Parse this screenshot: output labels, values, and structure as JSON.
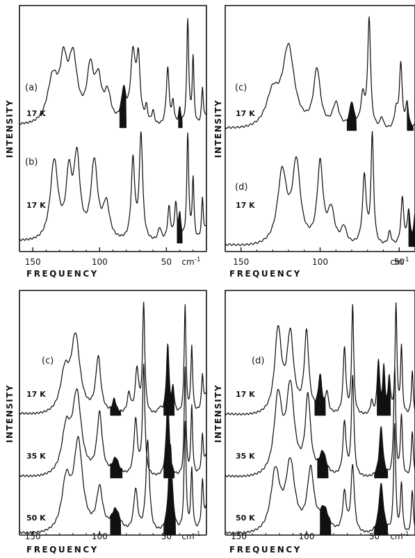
{
  "chart_data": [
    {
      "type": "line",
      "panel": "top-left",
      "ylabel": "INTENSITY",
      "xlabel": "FREQUENCY",
      "x_unit": "cm-1",
      "xlim": [
        160,
        20
      ],
      "xticks": [
        "150",
        "100",
        "50"
      ],
      "series": [
        {
          "label": "(a)",
          "temp": "17 K",
          "peaks": [
            [
              160,
              0.02,
              10
            ],
            [
              135,
              0.42,
              5
            ],
            [
              127,
              0.46,
              3
            ],
            [
              120,
              0.58,
              4
            ],
            [
              107,
              0.47,
              3
            ],
            [
              101,
              0.36,
              3
            ],
            [
              94,
              0.26,
              3
            ],
            [
              82,
              0.28,
              2
            ],
            [
              75,
              0.62,
              2.2
            ],
            [
              71,
              0.55,
              1.6
            ],
            [
              65,
              0.14,
              1.2
            ],
            [
              60,
              0.12,
              1.2
            ],
            [
              49,
              0.52,
              1.3
            ],
            [
              45,
              0.2,
              1
            ],
            [
              40,
              0.14,
              1
            ],
            [
              34,
              0.95,
              0.9
            ],
            [
              30,
              0.6,
              0.8
            ],
            [
              23,
              0.32,
              0.8
            ],
            [
              18,
              0.15,
              3
            ]
          ],
          "shaded": [
            [
              85,
              80
            ],
            [
              41,
              38
            ]
          ]
        },
        {
          "label": "(b)",
          "temp": "17 K",
          "peaks": [
            [
              160,
              0.02,
              10
            ],
            [
              134,
              0.72,
              3.5
            ],
            [
              123,
              0.55,
              2.5
            ],
            [
              117,
              0.72,
              2.8
            ],
            [
              104,
              0.7,
              3
            ],
            [
              95,
              0.32,
              3
            ],
            [
              75,
              0.72,
              1.6
            ],
            [
              69,
              0.95,
              1.5
            ],
            [
              55,
              0.12,
              1.5
            ],
            [
              48,
              0.3,
              1.3
            ],
            [
              43,
              0.32,
              1.2
            ],
            [
              40,
              0.2,
              1
            ],
            [
              34,
              0.95,
              0.9
            ],
            [
              30,
              0.55,
              0.8
            ],
            [
              23,
              0.35,
              0.8
            ],
            [
              18,
              0.2,
              3
            ]
          ],
          "shaded": [
            [
              42,
              38
            ]
          ]
        }
      ]
    },
    {
      "type": "line",
      "panel": "top-right",
      "ylabel": "INTENSITY",
      "xlabel": "FREQUENCY",
      "x_unit": "cm-1",
      "xlim": [
        160,
        40
      ],
      "xticks": [
        "150",
        "100",
        "50"
      ],
      "series": [
        {
          "label": "(c)",
          "temp": "17 K",
          "peaks": [
            [
              160,
              0.02,
              10
            ],
            [
              130,
              0.3,
              5
            ],
            [
              120,
              0.72,
              4.5
            ],
            [
              102,
              0.52,
              2.6
            ],
            [
              90,
              0.22,
              2.5
            ],
            [
              80,
              0.22,
              1.6
            ],
            [
              73,
              0.28,
              1.6
            ],
            [
              69,
              0.98,
              1.1
            ],
            [
              61,
              0.1,
              1.2
            ],
            [
              52,
              0.16,
              1.2
            ],
            [
              49,
              0.58,
              1.1
            ],
            [
              45,
              0.22,
              1
            ],
            [
              37,
              0.18,
              1
            ],
            [
              34,
              0.98,
              0.8
            ],
            [
              31,
              0.55,
              0.8
            ],
            [
              23,
              0.28,
              0.8
            ]
          ],
          "shaded": [
            [
              83,
              77
            ],
            [
              45,
              41
            ]
          ]
        },
        {
          "label": "(d)",
          "temp": "17 K",
          "peaks": [
            [
              160,
              0.02,
              10
            ],
            [
              124,
              0.65,
              3.5
            ],
            [
              115,
              0.72,
              3
            ],
            [
              100,
              0.72,
              2.2
            ],
            [
              93,
              0.3,
              2.5
            ],
            [
              85,
              0.15,
              2
            ],
            [
              72,
              0.62,
              1.4
            ],
            [
              67,
              0.98,
              1
            ],
            [
              56,
              0.12,
              1.2
            ],
            [
              48,
              0.42,
              1.1
            ],
            [
              44,
              0.3,
              1
            ],
            [
              40,
              0.25,
              1
            ],
            [
              34,
              0.98,
              0.8
            ],
            [
              31,
              0.52,
              0.8
            ],
            [
              23,
              0.26,
              0.8
            ]
          ],
          "shaded": [
            [
              44,
              40
            ]
          ]
        }
      ]
    },
    {
      "type": "line",
      "panel": "bottom-left",
      "ylabel": "INTENSITY",
      "xlabel": "FREQUENCY",
      "x_unit": "cm-1",
      "xlim": [
        160,
        20
      ],
      "xticks": [
        "150",
        "100",
        "50"
      ],
      "label": "(c)",
      "series": [
        {
          "temp": "17 K",
          "peaks": [
            [
              160,
              0.02,
              10
            ],
            [
              126,
              0.35,
              4
            ],
            [
              118,
              0.68,
              4
            ],
            [
              101,
              0.5,
              2.3
            ],
            [
              89,
              0.12,
              1.6
            ],
            [
              78,
              0.18,
              1.5
            ],
            [
              72,
              0.4,
              1.5
            ],
            [
              67,
              0.98,
              1.0
            ],
            [
              55,
              0.05,
              1.5
            ],
            [
              49,
              0.62,
              1.2
            ],
            [
              45,
              0.22,
              1
            ],
            [
              36,
              0.98,
              0.8
            ],
            [
              31,
              0.6,
              0.8
            ],
            [
              23,
              0.3,
              0.8
            ],
            [
              18,
              0.3,
              3
            ]
          ],
          "shaded": [
            [
              92,
              84
            ],
            [
              52,
              44
            ]
          ]
        },
        {
          "temp": "35 K",
          "peaks": [
            [
              160,
              0.02,
              10
            ],
            [
              125,
              0.4,
              4
            ],
            [
              117,
              0.72,
              4
            ],
            [
              100,
              0.55,
              2.4
            ],
            [
              88,
              0.15,
              3
            ],
            [
              73,
              0.5,
              1.6
            ],
            [
              67,
              0.98,
              1.1
            ],
            [
              49,
              0.68,
              1.4
            ],
            [
              36,
              0.98,
              0.8
            ],
            [
              31,
              0.62,
              0.8
            ],
            [
              23,
              0.32,
              0.8
            ],
            [
              18,
              0.3,
              3
            ]
          ],
          "shaded": [
            [
              92,
              83
            ],
            [
              52,
              44
            ]
          ]
        },
        {
          "temp": "50 K",
          "peaks": [
            [
              160,
              0.02,
              10
            ],
            [
              125,
              0.45,
              4
            ],
            [
              116,
              0.8,
              4
            ],
            [
              100,
              0.38,
              2.8
            ],
            [
              88,
              0.2,
              4
            ],
            [
              73,
              0.38,
              1.8
            ],
            [
              64,
              0.82,
              1.6
            ],
            [
              47,
              0.8,
              1.7
            ],
            [
              36,
              0.98,
              0.9
            ],
            [
              31,
              0.55,
              0.9
            ],
            [
              23,
              0.4,
              0.9
            ],
            [
              18,
              0.35,
              3
            ]
          ],
          "shaded": [
            [
              92,
              84
            ],
            [
              52,
              43
            ]
          ]
        }
      ]
    },
    {
      "type": "line",
      "panel": "bottom-right",
      "ylabel": "INTENSITY",
      "xlabel": "FREQUENCY",
      "x_unit": "cm-1",
      "xlim": [
        160,
        20
      ],
      "xticks": [
        "150",
        "100",
        "50"
      ],
      "label": "(d)",
      "series": [
        {
          "temp": "17 K",
          "peaks": [
            [
              160,
              0.02,
              10
            ],
            [
              121,
              0.75,
              3
            ],
            [
              112,
              0.7,
              3
            ],
            [
              100,
              0.72,
              2
            ],
            [
              90,
              0.32,
              1.6
            ],
            [
              85,
              0.18,
              1.3
            ],
            [
              72,
              0.6,
              1.2
            ],
            [
              66,
              0.98,
              0.9
            ],
            [
              52,
              0.12,
              1
            ],
            [
              47,
              0.48,
              1.1
            ],
            [
              43,
              0.4,
              1
            ],
            [
              39,
              0.32,
              1
            ],
            [
              34,
              0.98,
              0.8
            ],
            [
              30,
              0.6,
              0.8
            ],
            [
              22,
              0.4,
              0.8
            ]
          ],
          "shaded": [
            [
              94,
              86
            ],
            [
              48,
              38
            ]
          ]
        },
        {
          "temp": "35 K",
          "peaks": [
            [
              160,
              0.02,
              10
            ],
            [
              121,
              0.7,
              3.5
            ],
            [
              112,
              0.78,
              3.5
            ],
            [
              99,
              0.7,
              2.3
            ],
            [
              88,
              0.2,
              3
            ],
            [
              72,
              0.48,
              1.4
            ],
            [
              66,
              0.9,
              1.1
            ],
            [
              45,
              0.45,
              1.6
            ],
            [
              35,
              0.98,
              0.9
            ],
            [
              30,
              0.55,
              0.9
            ],
            [
              22,
              0.42,
              0.9
            ]
          ],
          "shaded": [
            [
              92,
              84
            ],
            [
              50,
              40
            ]
          ]
        },
        {
          "temp": "50 K",
          "peaks": [
            [
              160,
              0.02,
              10
            ],
            [
              123,
              0.55,
              4
            ],
            [
              112,
              0.62,
              4
            ],
            [
              97,
              0.55,
              3
            ],
            [
              87,
              0.2,
              4
            ],
            [
              72,
              0.35,
              1.6
            ],
            [
              66,
              0.6,
              1.5
            ],
            [
              45,
              0.45,
              2
            ],
            [
              35,
              0.98,
              0.9
            ],
            [
              30,
              0.45,
              0.9
            ],
            [
              22,
              0.4,
              0.9
            ]
          ],
          "shaded": [
            [
              90,
              82
            ],
            [
              50,
              40
            ]
          ]
        }
      ]
    }
  ]
}
